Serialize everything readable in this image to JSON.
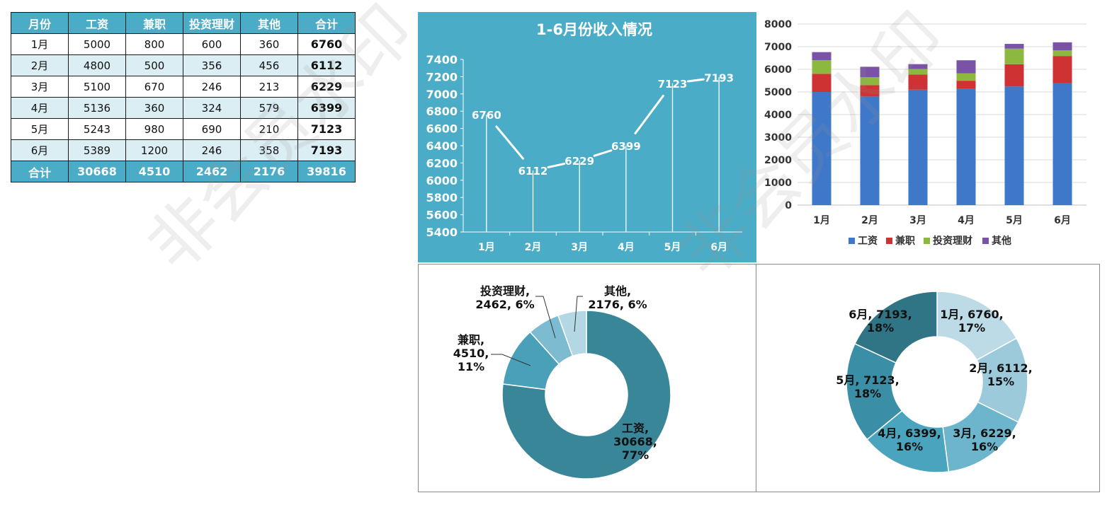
{
  "table": {
    "headers": [
      "月份",
      "工资",
      "兼职",
      "投资理财",
      "其他",
      "合计"
    ],
    "rows": [
      [
        "1月",
        "5000",
        "800",
        "600",
        "360",
        "6760"
      ],
      [
        "2月",
        "4800",
        "500",
        "356",
        "456",
        "6112"
      ],
      [
        "3月",
        "5100",
        "670",
        "246",
        "213",
        "6229"
      ],
      [
        "4月",
        "5136",
        "360",
        "324",
        "579",
        "6399"
      ],
      [
        "5月",
        "5243",
        "980",
        "690",
        "210",
        "7123"
      ],
      [
        "6月",
        "5389",
        "1200",
        "246",
        "358",
        "7193"
      ]
    ],
    "total": [
      "合计",
      "30668",
      "4510",
      "2462",
      "2176",
      "39816"
    ]
  },
  "watermark": "非会员水印",
  "chart_data": [
    {
      "type": "line",
      "title": "1-6月份收入情况",
      "categories": [
        "1月",
        "2月",
        "3月",
        "4月",
        "5月",
        "6月"
      ],
      "values": [
        6760,
        6112,
        6229,
        6399,
        7123,
        7193
      ],
      "ylim": [
        5400,
        7400
      ],
      "ytick_step": 200,
      "data_labels": [
        "6760",
        "6112",
        "6229",
        "6399",
        "7123",
        "7193"
      ],
      "background": "#4aacc6",
      "grid": false
    },
    {
      "type": "bar",
      "stacked": true,
      "categories": [
        "1月",
        "2月",
        "3月",
        "4月",
        "5月",
        "6月"
      ],
      "series": [
        {
          "name": "工资",
          "values": [
            5000,
            4800,
            5100,
            5136,
            5243,
            5389
          ],
          "color": "#3f78c8"
        },
        {
          "name": "兼职",
          "values": [
            800,
            500,
            670,
            360,
            980,
            1200
          ],
          "color": "#cf3232"
        },
        {
          "name": "投资理财",
          "values": [
            600,
            356,
            246,
            324,
            690,
            246
          ],
          "color": "#8db83f"
        },
        {
          "name": "其他",
          "values": [
            360,
            456,
            213,
            579,
            210,
            358
          ],
          "color": "#7a52a6"
        }
      ],
      "ylim": [
        0,
        8000
      ],
      "ytick_step": 1000,
      "grid": true,
      "legend": "bottom"
    },
    {
      "type": "pie",
      "donut": true,
      "slices": [
        {
          "name": "工资",
          "value": 30668,
          "percent": "77%",
          "color": "#3a8699",
          "label": [
            "工资,",
            "30668,",
            "77%"
          ]
        },
        {
          "name": "兼职",
          "value": 4510,
          "percent": "11%",
          "color": "#4aa0b8",
          "label": [
            "兼职,",
            "4510,",
            "11%"
          ]
        },
        {
          "name": "投资理财",
          "value": 2462,
          "percent": "6%",
          "color": "#7dbcd0",
          "label": [
            "投资理财,",
            "2462, 6%"
          ]
        },
        {
          "name": "其他",
          "value": 2176,
          "percent": "6%",
          "color": "#b3d7e3",
          "label": [
            "其他,",
            "2176, 6%"
          ]
        }
      ]
    },
    {
      "type": "pie",
      "donut": true,
      "slices": [
        {
          "name": "1月",
          "value": 6760,
          "percent": "17%",
          "color": "#bcdbe6",
          "label": [
            "1月, 6760,",
            "17%"
          ]
        },
        {
          "name": "2月",
          "value": 6112,
          "percent": "15%",
          "color": "#9ccadb",
          "label": [
            "2月, 6112,",
            "15%"
          ]
        },
        {
          "name": "3月",
          "value": 6229,
          "percent": "16%",
          "color": "#6db5cc",
          "label": [
            "3月, 6229,",
            "16%"
          ]
        },
        {
          "name": "4月",
          "value": 6399,
          "percent": "16%",
          "color": "#4aa4be",
          "label": [
            "4月, 6399,",
            "16%"
          ]
        },
        {
          "name": "5月",
          "value": 7123,
          "percent": "18%",
          "color": "#3a8ea6",
          "label": [
            "5月, 7123,",
            "18%"
          ]
        },
        {
          "name": "6月",
          "value": 7193,
          "percent": "18%",
          "color": "#2f7585",
          "label": [
            "6月, 7193,",
            "18%"
          ]
        }
      ]
    }
  ]
}
